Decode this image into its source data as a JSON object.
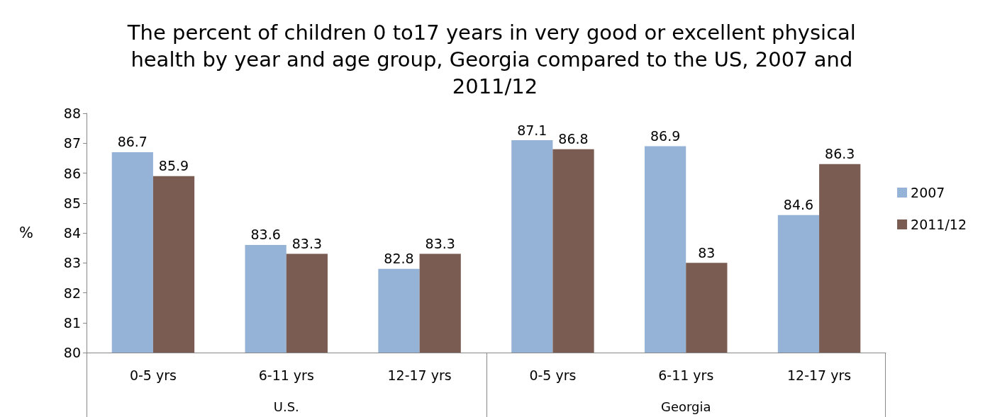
{
  "chart_data": {
    "type": "bar",
    "title": "The percent of children 0 to17 years in very good or excellent physical health by year and age group, Georgia compared to the US, 2007 and 2011/12",
    "ylabel": "%",
    "categories": [
      "0-5 yrs",
      "6-11 yrs",
      "12-17 yrs",
      "0-5 yrs",
      "6-11 yrs",
      "12-17 yrs"
    ],
    "annotations": [
      "U.S.",
      "Georgia"
    ],
    "series": [
      {
        "name": "2007",
        "color": "#95b3d7",
        "values": [
          86.7,
          83.6,
          82.8,
          87.1,
          86.9,
          84.6
        ]
      },
      {
        "name": "2011/12",
        "color": "#7a5c52",
        "values": [
          85.9,
          83.3,
          83.3,
          86.8,
          83,
          86.3
        ]
      }
    ],
    "ylim": [
      80,
      88
    ],
    "yticks": [
      80,
      81,
      82,
      83,
      84,
      85,
      86,
      87,
      88
    ],
    "data_labels": true,
    "grid": false,
    "legend": "right"
  }
}
